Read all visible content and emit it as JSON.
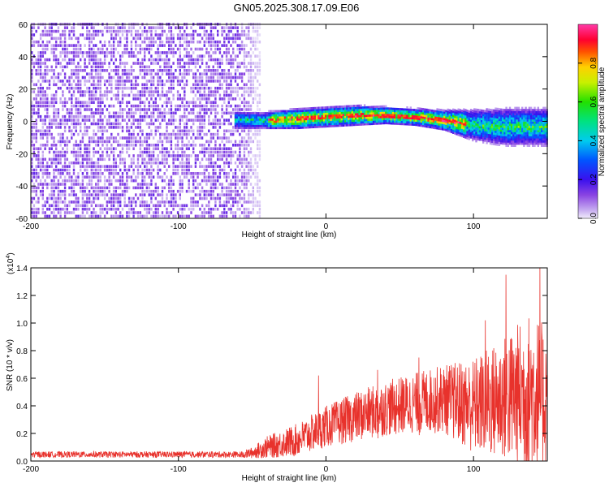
{
  "title": "GN05.2025.308.17.09.E06",
  "chart_data": [
    {
      "type": "heatmap",
      "xlabel": "Height of straight line (km)",
      "ylabel": "Frequency (Hz)",
      "xlim": [
        -200,
        150
      ],
      "ylim": [
        -60,
        60
      ],
      "xticks": [
        -200,
        -100,
        0,
        100
      ],
      "yticks": [
        -60,
        -40,
        -20,
        0,
        20,
        40,
        60
      ],
      "colorbar": {
        "label": "Normalized spectral amplitude",
        "ticks": [
          "0.0",
          "0.2",
          "0.4",
          "0.6",
          "0.8"
        ],
        "range": [
          0,
          1
        ],
        "colormap": "rainbow (violet to red to magenta)"
      },
      "noise_region_x": [
        -200,
        -45
      ],
      "signal_band": {
        "x": [
          -60,
          -40,
          -20,
          0,
          20,
          40,
          60,
          80,
          100,
          120,
          150
        ],
        "center_freq": [
          0,
          0,
          1,
          2,
          3,
          3,
          2,
          0,
          -3,
          -4,
          -4
        ],
        "halfwidth": [
          3,
          3,
          4,
          4,
          4,
          3,
          3,
          4,
          8,
          10,
          10
        ]
      }
    },
    {
      "type": "line",
      "xlabel": "Height of straight line (km)",
      "ylabel": "SNR (10 * v/v)",
      "scale_note": "(x10",
      "scale_exp": "4",
      "xlim": [
        -200,
        150
      ],
      "ylim": [
        0,
        1.4
      ],
      "xticks": [
        -200,
        -100,
        0,
        100
      ],
      "yticks": [
        "0.0",
        "0.2",
        "0.4",
        "0.6",
        "0.8",
        "1.0",
        "1.2",
        "1.4"
      ],
      "color": "#e8322c",
      "envelope": {
        "x": [
          -200,
          -60,
          -50,
          -40,
          -20,
          0,
          20,
          40,
          60,
          80,
          100,
          120,
          140,
          150
        ],
        "mean": [
          0.04,
          0.04,
          0.06,
          0.1,
          0.15,
          0.25,
          0.32,
          0.38,
          0.42,
          0.45,
          0.4,
          0.45,
          0.5,
          0.45
        ],
        "spread": [
          0.02,
          0.02,
          0.04,
          0.08,
          0.12,
          0.15,
          0.18,
          0.2,
          0.22,
          0.25,
          0.35,
          0.45,
          0.6,
          0.5
        ]
      },
      "peaks": [
        [
          -5,
          0.62
        ],
        [
          35,
          0.66
        ],
        [
          63,
          0.75
        ],
        [
          108,
          1.02
        ],
        [
          122,
          1.35
        ],
        [
          145,
          1.4
        ]
      ]
    }
  ]
}
